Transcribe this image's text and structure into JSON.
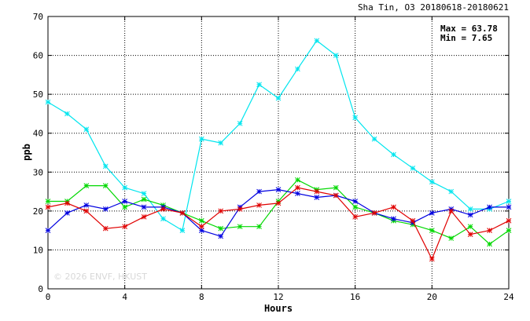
{
  "chart_data": {
    "type": "line",
    "title": "Sha Tin, O3 20180618-20180621",
    "xlabel": "Hours",
    "ylabel": "ppb",
    "xlim": [
      0,
      24
    ],
    "ylim": [
      0,
      70
    ],
    "x_ticks": [
      0,
      4,
      8,
      12,
      16,
      20,
      24
    ],
    "y_ticks": [
      0,
      10,
      20,
      30,
      40,
      50,
      60,
      70
    ],
    "grid": true,
    "stats": {
      "max_label": "Max = 63.78",
      "min_label": "Min =  7.65"
    },
    "watermark": "© 2026 ENVF, HKUST",
    "x": [
      0,
      1,
      2,
      3,
      4,
      5,
      6,
      7,
      8,
      9,
      10,
      11,
      12,
      13,
      14,
      15,
      16,
      17,
      18,
      19,
      20,
      21,
      22,
      23,
      24
    ],
    "series": [
      {
        "color": "#00e5ee",
        "values": [
          48,
          45,
          41,
          31.5,
          26,
          24.5,
          18,
          15,
          38.5,
          37.5,
          42.5,
          52.5,
          49,
          56.5,
          63.78,
          60,
          44,
          38.5,
          34.5,
          31,
          27.5,
          25,
          20.5,
          20.5,
          22.5
        ]
      },
      {
        "color": "#00d800",
        "values": [
          22.5,
          22.5,
          26.5,
          26.5,
          21,
          23,
          21.5,
          19.5,
          17.5,
          15.5,
          16,
          16,
          22.5,
          28,
          25.5,
          26,
          21,
          19.5,
          17.5,
          16.5,
          15,
          13,
          16,
          11.5,
          15
        ]
      },
      {
        "color": "#0000e0",
        "values": [
          15,
          19.5,
          21.5,
          20.5,
          22.5,
          21,
          21,
          19.5,
          15,
          13.5,
          21,
          25,
          25.5,
          24.5,
          23.5,
          24,
          22.5,
          19.5,
          18,
          17,
          19.5,
          20.5,
          19,
          21,
          21
        ]
      },
      {
        "color": "#e00000",
        "values": [
          21,
          22,
          20,
          15.5,
          16,
          18.5,
          20.5,
          19.5,
          16,
          20,
          20.5,
          21.5,
          22,
          26,
          25,
          24,
          18.5,
          19.5,
          21,
          17.5,
          7.65,
          20,
          14,
          15,
          17.5
        ]
      }
    ]
  }
}
